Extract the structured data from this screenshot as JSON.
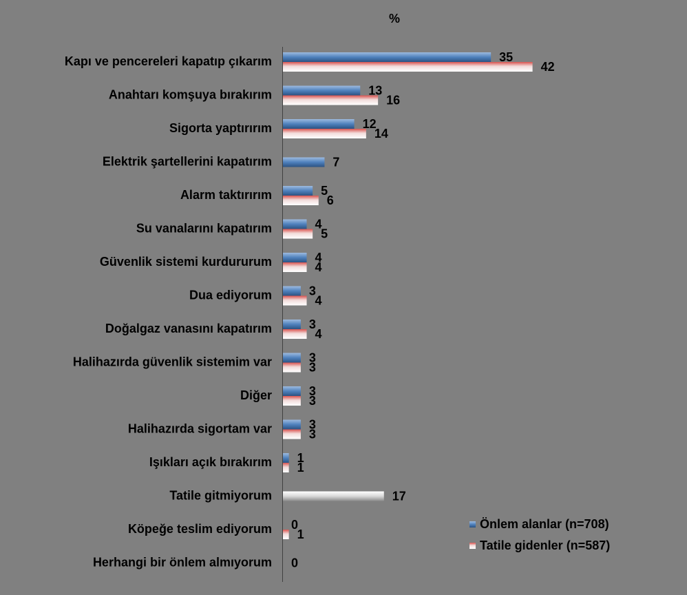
{
  "chart_data": {
    "type": "hbar",
    "title": "%",
    "categories": [
      "Kapı ve pencereleri kapatıp çıkarım",
      "Anahtarı komşuya bırakırım",
      "Sigorta yaptırırım",
      "Elektrik şartellerini kapatırım",
      "Alarm taktırırım",
      "Su vanalarını kapatırım",
      "Güvenlik sistemi kurdururum",
      "Dua ediyorum",
      "Doğalgaz vanasını kapatırım",
      "Halihazırda güvenlik sistemim var",
      "Diğer",
      "Halihazırda sigortam var",
      "Işıkları açık bırakırım",
      "Tatile gitmiyorum",
      "Köpeğe teslim ediyorum",
      "Herhangi bir önlem almıyorum"
    ],
    "series": [
      {
        "name": "Önlem alanlar (n=708)",
        "color": "#4f81bd",
        "colors": [
          "#4f81bd",
          "#4f81bd",
          "#4f81bd",
          "#4f81bd",
          "#4f81bd",
          "#4f81bd",
          "#4f81bd",
          "#4f81bd",
          "#4f81bd",
          "#4f81bd",
          "#4f81bd",
          "#4f81bd",
          "#4f81bd",
          "#bfbfbf",
          "#4f81bd",
          "#4f81bd"
        ],
        "values": [
          35,
          13,
          12,
          7,
          5,
          4,
          4,
          3,
          3,
          3,
          3,
          3,
          1,
          17,
          0,
          0
        ]
      },
      {
        "name": "Tatile gidenler (n=587)",
        "color": "#e6b9b8",
        "colors": [
          "#e6b9b8",
          "#e6b9b8",
          "#e6b9b8",
          "#e6b9b8",
          "#e6b9b8",
          "#e6b9b8",
          "#e6b9b8",
          "#e6b9b8",
          "#e6b9b8",
          "#e6b9b8",
          "#e6b9b8",
          "#e6b9b8",
          "#e6b9b8",
          "#e6b9b8",
          "#e6b9b8",
          "#e6b9b8"
        ],
        "values": [
          42,
          16,
          14,
          null,
          6,
          5,
          4,
          4,
          4,
          3,
          3,
          3,
          1,
          null,
          1,
          null
        ]
      }
    ],
    "xlim": [
      0,
      60
    ]
  }
}
